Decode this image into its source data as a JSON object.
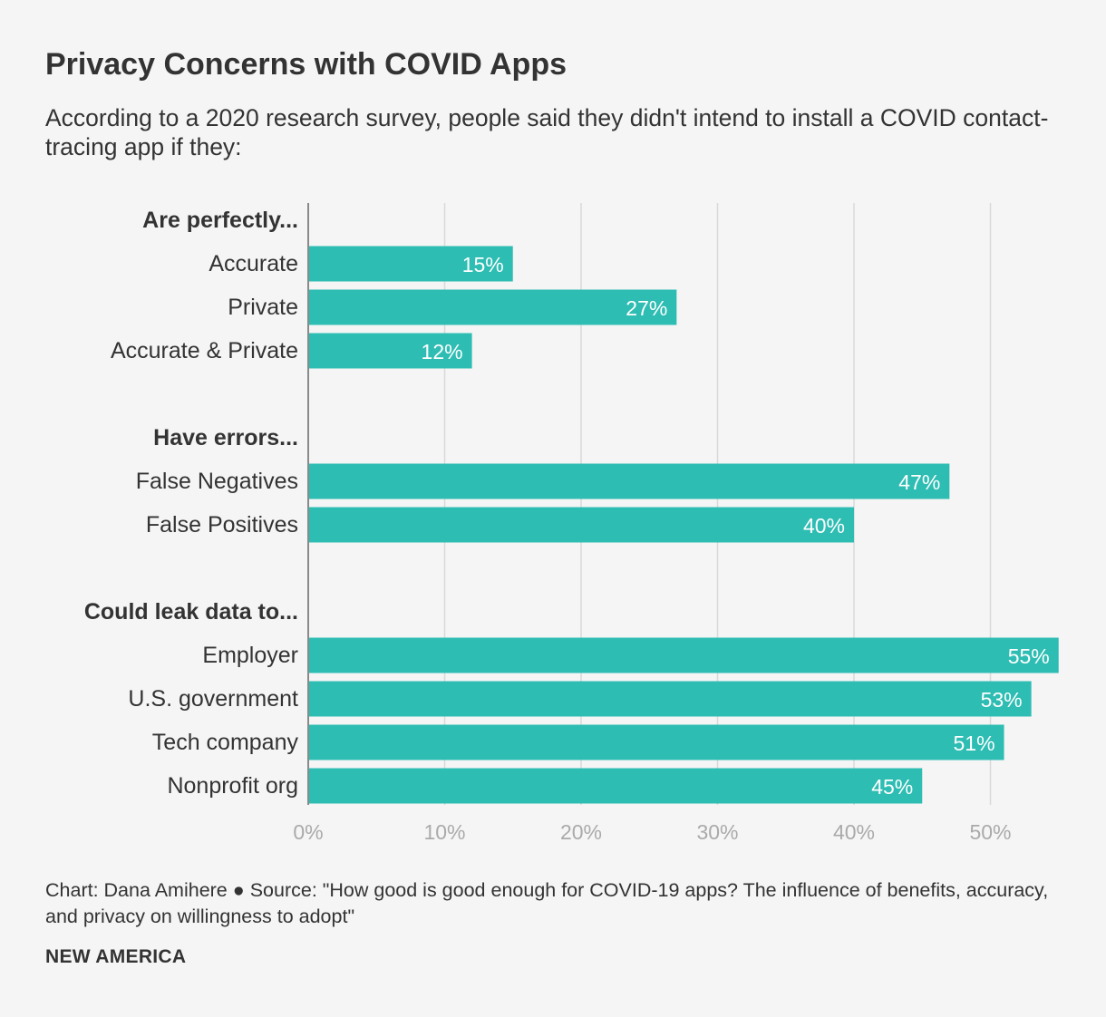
{
  "chart_data": {
    "type": "bar",
    "orientation": "horizontal",
    "title": "Privacy Concerns with COVID Apps",
    "subtitle": "According to a 2020 research survey, people said they didn't intend to install a COVID contact-tracing app if they:",
    "xlim": [
      0,
      55
    ],
    "x_ticks": [
      0,
      10,
      20,
      30,
      40,
      50
    ],
    "x_tick_labels": [
      "0%",
      "10%",
      "20%",
      "30%",
      "40%",
      "50%"
    ],
    "grid": true,
    "bar_color": "#2ebdb3",
    "groups": [
      {
        "label": "Are perfectly...",
        "categories": [
          "Accurate",
          "Private",
          "Accurate & Private"
        ],
        "values": [
          15,
          27,
          12
        ],
        "value_labels": [
          "15%",
          "27%",
          "12%"
        ]
      },
      {
        "label": "Have errors...",
        "categories": [
          "False Negatives",
          "False Positives"
        ],
        "values": [
          47,
          40
        ],
        "value_labels": [
          "47%",
          "40%"
        ]
      },
      {
        "label": "Could leak data to...",
        "categories": [
          "Employer",
          "U.S. government",
          "Tech company",
          "Nonprofit org"
        ],
        "values": [
          55,
          53,
          51,
          45
        ],
        "value_labels": [
          "55%",
          "53%",
          "51%",
          "45%"
        ]
      }
    ]
  },
  "footer": {
    "source": "Chart: Dana Amihere ● Source: \"How good is good enough for COVID-19 apps? The influence of benefits, accuracy, and privacy on willingness to adopt\"",
    "brand": "NEW AMERICA"
  }
}
